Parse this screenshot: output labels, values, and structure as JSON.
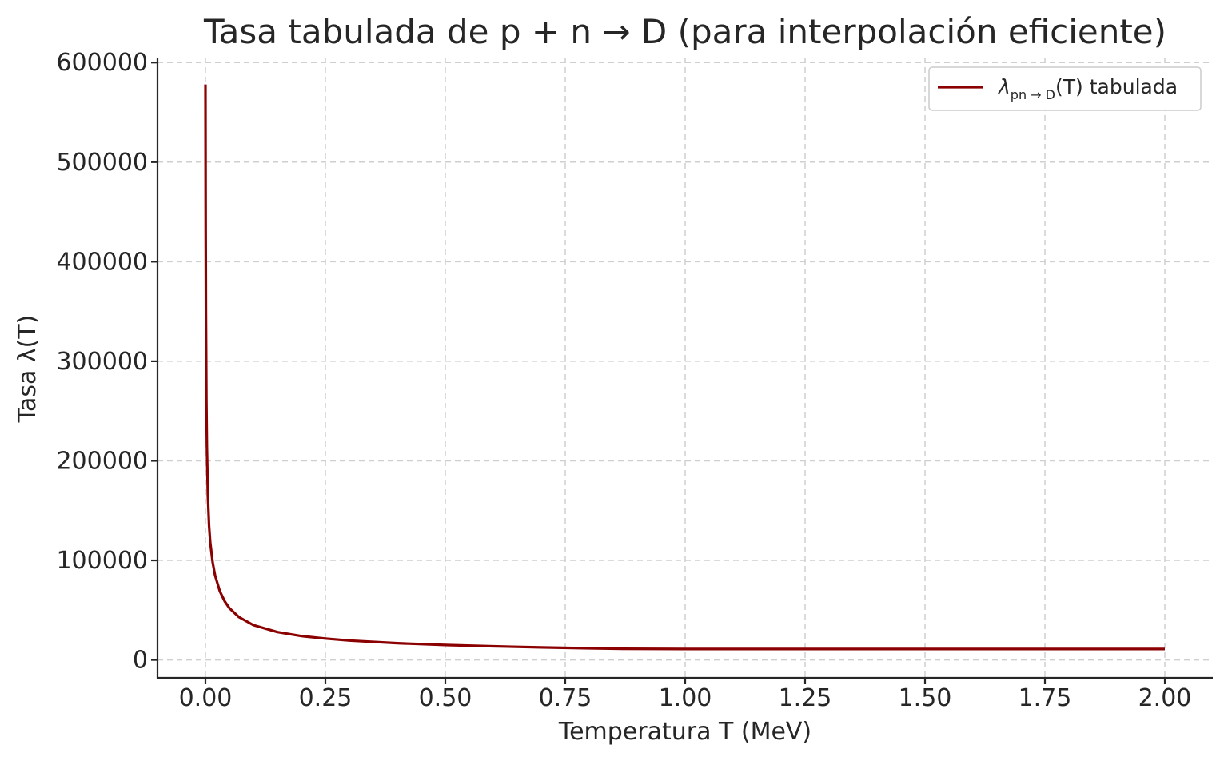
{
  "chart_data": {
    "type": "line",
    "title": "Tasa tabulada de p + n → D (para interpolación eficiente)",
    "xlabel": "Temperatura T (MeV)",
    "ylabel": "Tasa λ(T)",
    "xlim": [
      -0.1,
      2.1
    ],
    "ylim": [
      -18000,
      605000
    ],
    "xticks": [
      0.0,
      0.25,
      0.5,
      0.75,
      1.0,
      1.25,
      1.5,
      1.75,
      2.0
    ],
    "xtick_labels": [
      "0.00",
      "0.25",
      "0.50",
      "0.75",
      "1.00",
      "1.25",
      "1.50",
      "1.75",
      "2.00"
    ],
    "yticks": [
      0,
      100000,
      200000,
      300000,
      400000,
      500000,
      600000
    ],
    "ytick_labels": [
      "0",
      "100000",
      "200000",
      "300000",
      "400000",
      "500000",
      "600000"
    ],
    "grid": true,
    "legend_position": "top-right",
    "series": [
      {
        "name": "λpn→D(T) tabulada",
        "color": "#8b0000",
        "x": [
          0.0,
          0.0005,
          0.001,
          0.002,
          0.003,
          0.005,
          0.0075,
          0.01,
          0.015,
          0.02,
          0.03,
          0.04,
          0.05,
          0.07,
          0.1,
          0.15,
          0.2,
          0.25,
          0.3,
          0.4,
          0.5,
          0.6,
          0.7,
          0.8,
          0.87,
          1.0,
          1.25,
          1.5,
          1.75,
          2.0
        ],
        "y": [
          578000,
          430000,
          350000,
          260000,
          215000,
          165000,
          135000,
          118000,
          98000,
          85000,
          69000,
          59000,
          52000,
          43000,
          35000,
          28000,
          24000,
          21500,
          19500,
          16800,
          15000,
          13700,
          12600,
          11700,
          11200,
          11000,
          11000,
          11000,
          11000,
          11000
        ]
      }
    ],
    "legend": {
      "symbol": "λ",
      "subscript": "pn → D",
      "arg": "(T)",
      "suffix": " tabulada"
    }
  }
}
